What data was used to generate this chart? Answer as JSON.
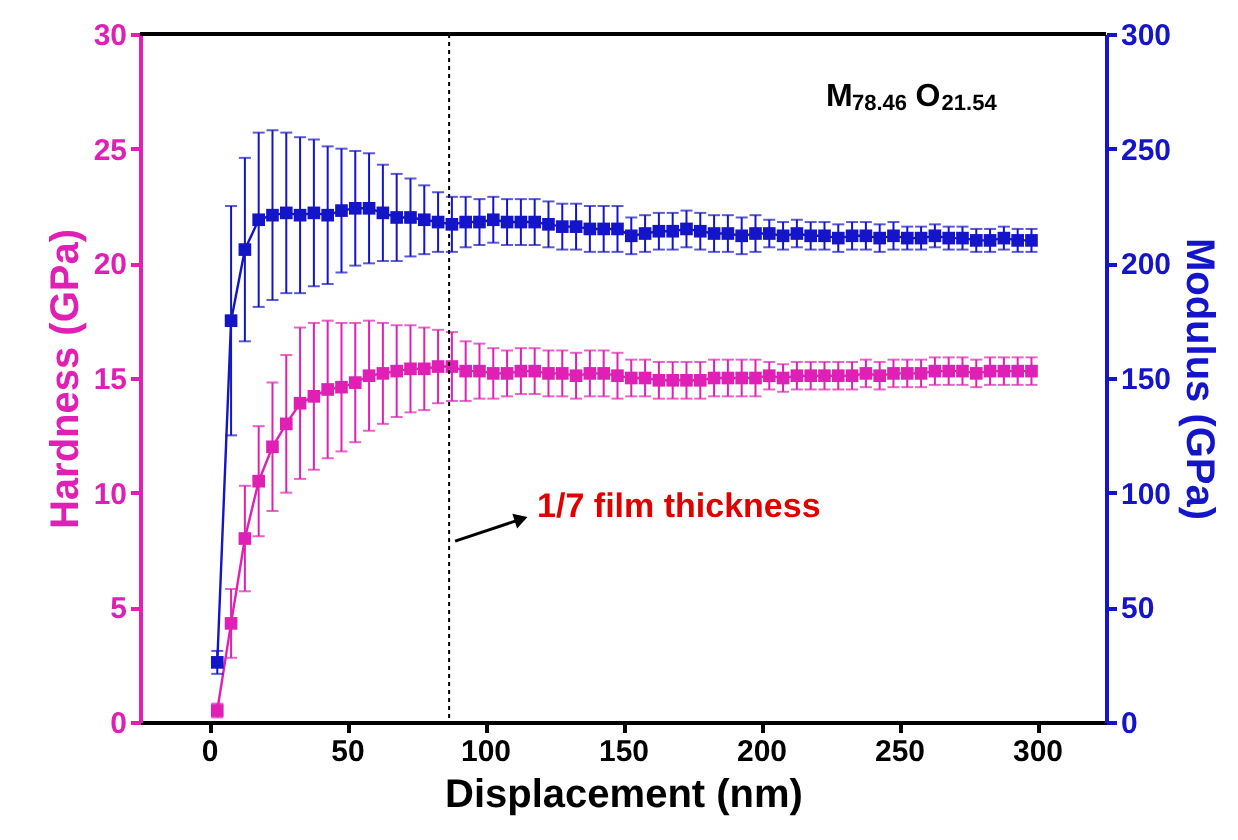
{
  "chart_data": {
    "type": "line",
    "xlabel": "Displacement (nm)",
    "ylabel": "Hardness (GPa)",
    "y2label": "Modulus (GPa)",
    "x": [
      3,
      8,
      13,
      18,
      23,
      28,
      33,
      38,
      43,
      48,
      53,
      58,
      63,
      68,
      73,
      78,
      83,
      88,
      93,
      98,
      103,
      108,
      113,
      118,
      123,
      128,
      133,
      138,
      143,
      148,
      153,
      158,
      163,
      168,
      173,
      178,
      183,
      188,
      193,
      198,
      203,
      208,
      213,
      218,
      223,
      228,
      233,
      238,
      243,
      248,
      253,
      258,
      263,
      268,
      273,
      278,
      283,
      288,
      293,
      298
    ],
    "series": [
      {
        "name": null,
        "color": "#e020b4",
        "axis": "y",
        "values": [
          0.5,
          4.3,
          8.0,
          10.5,
          12.0,
          13.0,
          13.9,
          14.2,
          14.5,
          14.6,
          14.8,
          15.1,
          15.2,
          15.3,
          15.4,
          15.4,
          15.5,
          15.5,
          15.3,
          15.3,
          15.2,
          15.2,
          15.3,
          15.3,
          15.2,
          15.2,
          15.1,
          15.2,
          15.2,
          15.1,
          15.0,
          15.0,
          14.9,
          14.9,
          14.9,
          14.9,
          15.0,
          15.0,
          15.0,
          15.0,
          15.1,
          15.0,
          15.1,
          15.1,
          15.1,
          15.1,
          15.1,
          15.2,
          15.1,
          15.2,
          15.2,
          15.2,
          15.3,
          15.3,
          15.3,
          15.2,
          15.3,
          15.3,
          15.3,
          15.3
        ],
        "errors": [
          0.3,
          1.5,
          2.3,
          2.4,
          2.8,
          3.0,
          3.3,
          3.2,
          3.0,
          2.8,
          2.6,
          2.4,
          2.2,
          2.0,
          1.9,
          1.8,
          1.6,
          1.5,
          1.3,
          1.2,
          1.1,
          1.0,
          1.0,
          1.0,
          1.0,
          1.0,
          1.0,
          1.0,
          1.0,
          1.0,
          0.8,
          0.8,
          0.8,
          0.8,
          0.8,
          0.8,
          0.8,
          0.8,
          0.8,
          0.8,
          0.6,
          0.6,
          0.6,
          0.6,
          0.6,
          0.6,
          0.6,
          0.6,
          0.6,
          0.6,
          0.6,
          0.6,
          0.6,
          0.6,
          0.6,
          0.6,
          0.6,
          0.6,
          0.6,
          0.6
        ]
      },
      {
        "name": null,
        "color": "#1414c8",
        "axis": "y2",
        "values": [
          26,
          175,
          206,
          219,
          221,
          222,
          221,
          222,
          221,
          223,
          224,
          224,
          222,
          220,
          220,
          219,
          218,
          217,
          218,
          218,
          219,
          218,
          218,
          218,
          217,
          216,
          216,
          215,
          215,
          215,
          212,
          213,
          214,
          214,
          215,
          214,
          213,
          213,
          212,
          213,
          213,
          212,
          213,
          212,
          212,
          211,
          212,
          212,
          211,
          212,
          211,
          211,
          212,
          211,
          211,
          210,
          210,
          211,
          210,
          210
        ],
        "errors": [
          5,
          50,
          40,
          38,
          37,
          35,
          34,
          32,
          30,
          27,
          25,
          24,
          21,
          19,
          17,
          15,
          13,
          12,
          11,
          10,
          10,
          10,
          10,
          10,
          10,
          10,
          10,
          10,
          10,
          10,
          8,
          8,
          8,
          8,
          8,
          8,
          8,
          8,
          8,
          8,
          6,
          6,
          6,
          6,
          6,
          6,
          6,
          6,
          6,
          6,
          5,
          5,
          5,
          5,
          5,
          5,
          5,
          5,
          5,
          5
        ]
      }
    ],
    "xlim": [
      -25,
      325
    ],
    "xticks": [
      0,
      50,
      100,
      150,
      200,
      250,
      300
    ],
    "ylim": [
      0,
      30
    ],
    "yticks": [
      0,
      5,
      10,
      15,
      20,
      25,
      30
    ],
    "y2lim": [
      0,
      300
    ],
    "y2ticks": [
      0,
      50,
      100,
      150,
      200,
      250,
      300
    ],
    "ref_lines": [
      {
        "axis": "x",
        "value": 87,
        "label": null,
        "color": "#000000",
        "line_style": "dotted"
      }
    ],
    "annotations": [
      {
        "text": "1/7 film thickness",
        "x": 87,
        "y": 7.8
      },
      "M$_{78.46}$O$_{21.54}$"
    ],
    "marker": "square",
    "line_style": "solid",
    "grid": false
  }
}
